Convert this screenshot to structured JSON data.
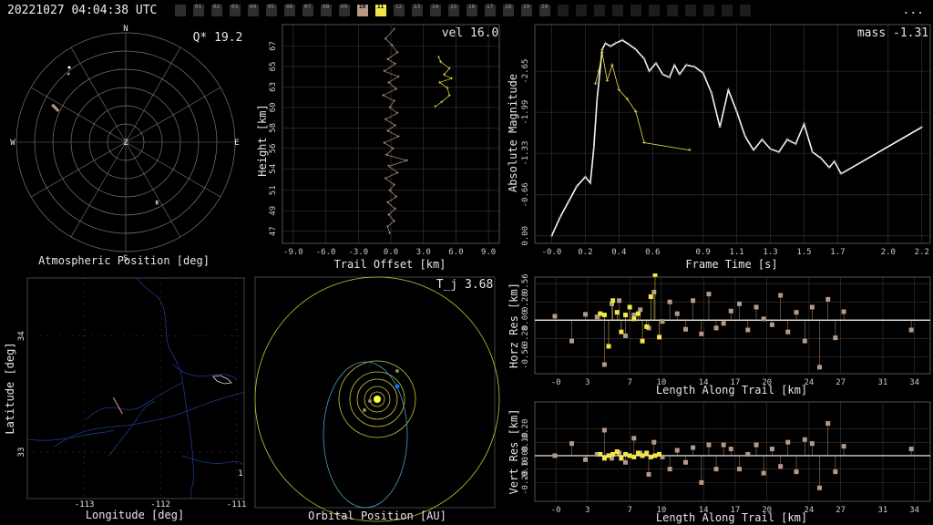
{
  "header": {
    "timestamp": "20221027 04:04:38 UTC",
    "menu_label": "...",
    "cameras": [
      {
        "label": "",
        "state": "off"
      },
      {
        "label": "01",
        "state": "off"
      },
      {
        "label": "02",
        "state": "off"
      },
      {
        "label": "03",
        "state": "off"
      },
      {
        "label": "04",
        "state": "off"
      },
      {
        "label": "05",
        "state": "off"
      },
      {
        "label": "06",
        "state": "off"
      },
      {
        "label": "07",
        "state": "off"
      },
      {
        "label": "08",
        "state": "off"
      },
      {
        "label": "09",
        "state": "off"
      },
      {
        "label": "10",
        "state": "tan"
      },
      {
        "label": "11",
        "state": "yellow"
      },
      {
        "label": "12",
        "state": "off"
      },
      {
        "label": "13",
        "state": "off"
      },
      {
        "label": "14",
        "state": "off"
      },
      {
        "label": "15",
        "state": "off"
      },
      {
        "label": "16",
        "state": "off"
      },
      {
        "label": "17",
        "state": "off"
      },
      {
        "label": "18",
        "state": "off"
      },
      {
        "label": "19",
        "state": "off"
      },
      {
        "label": "20",
        "state": "off"
      },
      {
        "label": "",
        "state": "dark"
      },
      {
        "label": "",
        "state": "dark"
      },
      {
        "label": "",
        "state": "dark"
      },
      {
        "label": "",
        "state": "dark"
      },
      {
        "label": "",
        "state": "dark"
      },
      {
        "label": "",
        "state": "dark"
      },
      {
        "label": "",
        "state": "dark"
      },
      {
        "label": "",
        "state": "dark"
      },
      {
        "label": "",
        "state": "dark"
      },
      {
        "label": "",
        "state": "dark"
      },
      {
        "label": "",
        "state": "dark"
      }
    ]
  },
  "colors": {
    "tan": "#b49a86",
    "yellow": "#f4e64a",
    "grid": "#3a3a3a",
    "axis": "#dcdcdc",
    "map_lines": "#1e3a8a",
    "orbit_yellow": "#c8c43a",
    "orbit_cyan": "#4aa0c8",
    "earth": "#1e6eff"
  },
  "chart_data": [
    {
      "id": "atmospheric_position",
      "type": "scatter",
      "xlabel": "Atmospheric Position [deg]",
      "annotation": "Q* 19.2",
      "compass": [
        "N",
        "E",
        "S",
        "W",
        "Z"
      ],
      "radiant_label": "R",
      "points": [
        {
          "az": -63,
          "zen": 68,
          "len": 10
        },
        {
          "az": -40,
          "zen": 74,
          "len": 2
        },
        {
          "az": 153,
          "zen": 55,
          "len": 0
        }
      ]
    },
    {
      "id": "height_vs_offset",
      "type": "scatter",
      "annotation": "vel 16.0",
      "xlabel": "Trail Offset [km]",
      "ylabel": "Height [km]",
      "xlim": [
        -10,
        10
      ],
      "ylim": [
        45.5,
        69
      ],
      "xticks": [
        "-9.0",
        "-6.0",
        "-3.0",
        "0.0",
        "3.0",
        "6.0",
        "9.0"
      ],
      "yticks": [
        "47",
        "49",
        "51",
        "54",
        "56",
        "58",
        "60",
        "63",
        "65",
        "67"
      ],
      "series": [
        {
          "color": "tan",
          "y": [
            68.5,
            67.5,
            66.8,
            66.0,
            65.3,
            64.8,
            64.0,
            63.4,
            62.8,
            62.1,
            61.4,
            60.8,
            60.1,
            59.5,
            58.8,
            58.2,
            57.6,
            57.0,
            56.3,
            55.7,
            55.0,
            54.4,
            53.8,
            53.1,
            52.5,
            51.8,
            51.2,
            50.5,
            49.9,
            49.2,
            48.6,
            47.9,
            47.3,
            46.6
          ],
          "x": [
            0.3,
            -0.5,
            0.1,
            0.6,
            -0.3,
            0.4,
            -0.6,
            0.7,
            -0.2,
            0.5,
            -0.7,
            0.3,
            -0.1,
            0.6,
            -0.5,
            0.4,
            -0.3,
            0.7,
            -0.6,
            0.2,
            -0.4,
            1.5,
            -0.2,
            0.6,
            -0.5,
            0.3,
            -0.1,
            0.5,
            -0.3,
            0.4,
            -0.2,
            0.3,
            -0.3,
            -0.1
          ]
        },
        {
          "color": "yellow",
          "y": [
            65.5,
            65.0,
            64.3,
            63.6,
            63.2,
            62.8,
            62.2,
            61.4,
            60.7,
            60.2
          ],
          "x": [
            4.4,
            4.6,
            5.4,
            4.9,
            5.6,
            4.5,
            5.2,
            5.4,
            4.7,
            4.1
          ]
        }
      ]
    },
    {
      "id": "light_curve",
      "type": "line",
      "annotation": "mass -1.31",
      "xlabel": "Frame Time [s]",
      "ylabel": "Absolute Magnitude",
      "xlim": [
        -0.1,
        2.25
      ],
      "ylim": [
        0.15,
        -3.3
      ],
      "xticks": [
        "-0.0",
        "0.2",
        "0.4",
        "0.6",
        "0.9",
        "1.1",
        "1.3",
        "1.5",
        "1.7",
        "2.0",
        "2.2"
      ],
      "yticks": [
        "-2.65",
        "-1.99",
        "-1.33",
        "-0.66",
        "0.00"
      ],
      "series": [
        {
          "name": "",
          "color": "tan",
          "x": [
            0.0,
            0.05,
            0.1,
            0.15,
            0.2,
            0.23,
            0.25,
            0.27,
            0.3,
            0.32,
            0.35,
            0.38,
            0.42,
            0.46,
            0.5,
            0.55,
            0.58,
            0.62,
            0.66,
            0.7,
            0.73,
            0.76,
            0.8,
            0.85,
            0.9,
            0.95,
            1.0,
            1.05,
            1.1,
            1.15,
            1.2,
            1.25,
            1.3,
            1.35,
            1.4,
            1.45,
            1.5,
            1.55,
            1.6,
            1.65,
            1.68,
            1.72,
            2.2
          ],
          "y": [
            0.0,
            -0.3,
            -0.55,
            -0.8,
            -0.95,
            -0.85,
            -1.4,
            -2.2,
            -3.0,
            -3.1,
            -3.05,
            -3.1,
            -3.15,
            -3.08,
            -3.0,
            -2.85,
            -2.65,
            -2.78,
            -2.6,
            -2.55,
            -2.75,
            -2.6,
            -2.75,
            -2.72,
            -2.62,
            -2.3,
            -1.75,
            -2.35,
            -2.0,
            -1.6,
            -1.38,
            -1.55,
            -1.4,
            -1.35,
            -1.55,
            -1.48,
            -1.8,
            -1.35,
            -1.25,
            -1.1,
            -1.2,
            -1.0,
            -1.75
          ]
        },
        {
          "name": "",
          "color": "yellow",
          "x": [
            0.26,
            0.28,
            0.3,
            0.33,
            0.36,
            0.4,
            0.45,
            0.5,
            0.55,
            0.82
          ],
          "y": [
            -2.45,
            -2.65,
            -2.95,
            -2.5,
            -2.75,
            -2.35,
            -2.2,
            -2.0,
            -1.5,
            -1.38
          ]
        }
      ]
    },
    {
      "id": "map",
      "type": "scatter",
      "xlabel": "Longitude [deg]",
      "ylabel": "Latitude [deg]",
      "xticks": [
        "-113",
        "-112",
        "-111"
      ],
      "yticks": [
        "34",
        "33"
      ],
      "edge_label": "1",
      "track": {
        "from": [
          -112.62,
          33.47
        ],
        "to": [
          -112.5,
          33.33
        ]
      }
    },
    {
      "id": "orbit",
      "type": "scatter",
      "annotation": "T_j 3.68",
      "xlabel": "Orbital Position [AU]"
    },
    {
      "id": "horizontal_residuals",
      "type": "scatter",
      "xlabel": "Length Along Trail [km]",
      "ylabel": "Horz Res [km]",
      "xlim": [
        -2,
        35.5
      ],
      "ylim": [
        -0.82,
        0.66
      ],
      "xticks": [
        "-0",
        "3",
        "7",
        "10",
        "14",
        "17",
        "20",
        "24",
        "27",
        "31",
        "34"
      ],
      "yticks": [
        "0.56",
        "0.28",
        "0.00",
        "-0.28",
        "-0.56"
      ],
      "tan_x": [
        -0.1,
        1.5,
        2.8,
        3.9,
        4.6,
        5.3,
        6.0,
        6.6,
        7.4,
        8.0,
        8.8,
        9.3,
        10.1,
        10.8,
        11.5,
        12.3,
        13.0,
        13.8,
        14.5,
        15.2,
        15.9,
        16.6,
        17.4,
        18.2,
        19.0,
        19.7,
        20.5,
        21.3,
        22.0,
        22.8,
        23.6,
        24.3,
        25.0,
        25.8,
        26.5,
        27.3,
        33.7
      ],
      "tan_y": [
        0.06,
        -0.32,
        0.09,
        0.05,
        -0.68,
        0.25,
        0.3,
        -0.24,
        0.08,
        0.16,
        -0.12,
        0.43,
        -0.02,
        0.28,
        0.1,
        -0.14,
        0.3,
        -0.21,
        0.4,
        -0.12,
        -0.05,
        0.14,
        0.25,
        -0.15,
        0.2,
        0.02,
        -0.07,
        0.38,
        -0.18,
        0.12,
        -0.32,
        0.2,
        -0.72,
        0.32,
        -0.27,
        0.13,
        -0.15
      ],
      "yel_x": [
        4.2,
        4.6,
        5.0,
        5.4,
        5.8,
        6.2,
        6.6,
        7.0,
        7.4,
        7.8,
        8.2,
        8.6,
        9.0,
        9.4,
        9.8
      ],
      "yel_y": [
        0.1,
        0.08,
        -0.4,
        0.3,
        0.12,
        -0.18,
        0.08,
        0.2,
        0.02,
        0.1,
        -0.32,
        -0.1,
        0.36,
        0.7,
        -0.26
      ]
    },
    {
      "id": "vertical_residuals",
      "type": "scatter",
      "xlabel": "Length Along Trail [km]",
      "ylabel": "Vert Res [km]",
      "xlim": [
        -2,
        35.5
      ],
      "ylim": [
        -0.34,
        0.4
      ],
      "xticks": [
        "-0",
        "3",
        "7",
        "10",
        "14",
        "17",
        "20",
        "24",
        "27",
        "31",
        "34"
      ],
      "yticks": [
        "0.20",
        "0.10",
        "0.00",
        "-0.10",
        "-0.20"
      ],
      "tan_x": [
        -0.1,
        1.5,
        2.8,
        3.9,
        4.6,
        5.3,
        6.0,
        6.6,
        7.4,
        8.0,
        8.8,
        9.3,
        10.1,
        10.8,
        11.5,
        12.3,
        13.0,
        13.8,
        14.5,
        15.2,
        15.9,
        16.6,
        17.4,
        18.2,
        19.0,
        19.7,
        20.5,
        21.3,
        22.0,
        22.8,
        23.6,
        24.3,
        25.0,
        25.8,
        26.5,
        27.3,
        33.7
      ],
      "tan_y": [
        0.0,
        0.09,
        -0.03,
        0.01,
        0.19,
        -0.02,
        0.02,
        -0.05,
        0.13,
        0.02,
        -0.14,
        0.1,
        -0.01,
        -0.1,
        0.04,
        -0.05,
        0.06,
        -0.2,
        0.08,
        -0.1,
        0.08,
        0.05,
        -0.1,
        0.01,
        0.08,
        -0.13,
        0.05,
        -0.08,
        0.1,
        -0.12,
        0.12,
        0.09,
        -0.24,
        0.24,
        -0.12,
        0.07,
        0.05
      ],
      "yel_x": [
        4.2,
        4.6,
        5.0,
        5.4,
        5.8,
        6.2,
        6.6,
        7.0,
        7.4,
        7.8,
        8.2,
        8.6,
        9.0,
        9.4,
        9.8
      ],
      "yel_y": [
        0.01,
        -0.02,
        0.0,
        0.01,
        0.03,
        -0.02,
        0.01,
        0.0,
        -0.01,
        0.02,
        0.0,
        0.02,
        -0.01,
        0.0,
        0.01
      ]
    }
  ]
}
